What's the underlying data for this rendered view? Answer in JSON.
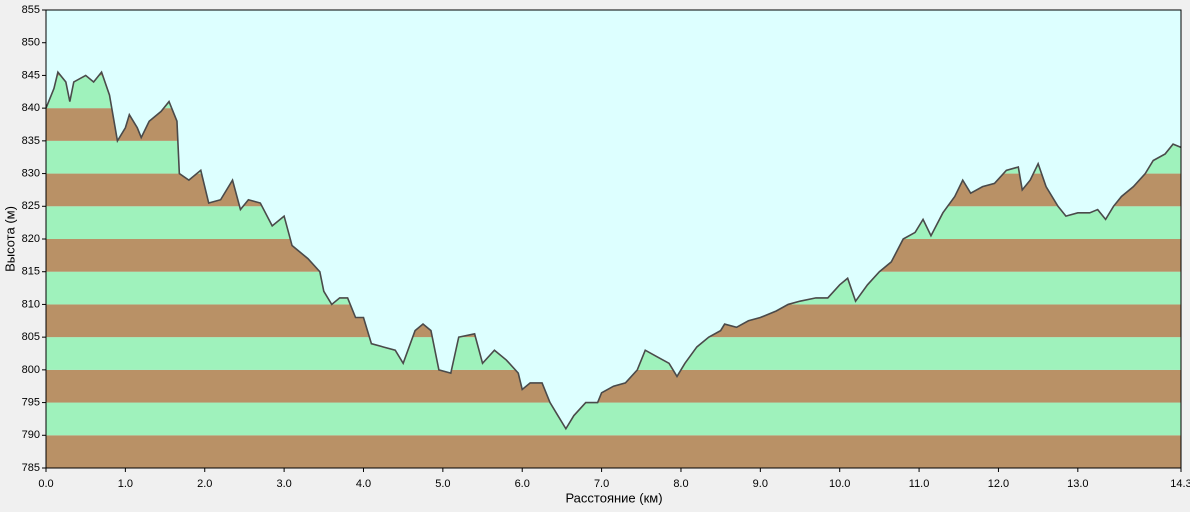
{
  "chart_data": {
    "type": "area",
    "xlabel": "Расстояние  (км)",
    "ylabel": "Высота (м)",
    "x": [
      0.0,
      0.1,
      0.15,
      0.25,
      0.3,
      0.35,
      0.5,
      0.6,
      0.7,
      0.8,
      0.9,
      1.0,
      1.05,
      1.15,
      1.2,
      1.3,
      1.45,
      1.55,
      1.65,
      1.68,
      1.8,
      1.95,
      2.05,
      2.2,
      2.35,
      2.45,
      2.55,
      2.7,
      2.85,
      3.0,
      3.1,
      3.3,
      3.45,
      3.5,
      3.6,
      3.7,
      3.8,
      3.9,
      4.0,
      4.1,
      4.25,
      4.4,
      4.5,
      4.65,
      4.75,
      4.85,
      4.95,
      5.1,
      5.2,
      5.4,
      5.5,
      5.65,
      5.8,
      5.95,
      6.0,
      6.1,
      6.25,
      6.35,
      6.45,
      6.55,
      6.65,
      6.8,
      6.95,
      7.0,
      7.15,
      7.3,
      7.45,
      7.55,
      7.7,
      7.85,
      7.95,
      8.05,
      8.2,
      8.35,
      8.5,
      8.55,
      8.7,
      8.85,
      9.0,
      9.2,
      9.35,
      9.5,
      9.7,
      9.85,
      10.0,
      10.1,
      10.2,
      10.35,
      10.5,
      10.65,
      10.8,
      10.95,
      11.05,
      11.15,
      11.3,
      11.45,
      11.55,
      11.65,
      11.8,
      11.95,
      12.1,
      12.25,
      12.3,
      12.4,
      12.5,
      12.6,
      12.75,
      12.85,
      13.0,
      13.15,
      13.25,
      13.35,
      13.45,
      13.55,
      13.7,
      13.85,
      13.95,
      14.1,
      14.2,
      14.3
    ],
    "values": [
      840,
      843,
      845.5,
      844,
      841,
      844,
      845,
      844,
      845.5,
      842,
      835,
      837,
      839,
      837,
      835.5,
      838,
      839.5,
      841,
      838,
      830,
      829,
      830.5,
      825.5,
      826,
      829,
      824.5,
      826,
      825.5,
      822,
      823.5,
      819,
      817,
      815,
      812,
      810,
      811,
      811,
      808,
      808,
      804,
      803.5,
      803,
      801,
      806,
      807,
      806,
      800,
      799.5,
      805,
      805.5,
      801,
      803,
      801.5,
      799.5,
      797,
      798,
      798,
      795,
      793,
      791,
      793,
      795,
      795,
      796.5,
      797.5,
      798,
      800,
      803,
      802,
      801,
      799,
      801,
      803.5,
      805,
      806,
      807,
      806.5,
      807.5,
      808,
      809,
      810,
      810.5,
      811,
      811,
      813,
      814,
      810.5,
      813,
      815,
      816.5,
      820,
      821,
      823,
      820.5,
      824,
      826.5,
      829,
      827,
      828,
      828.5,
      830.5,
      831,
      827.5,
      829,
      831.5,
      828,
      825,
      823.5,
      824,
      824,
      824.5,
      823,
      825,
      826.5,
      828,
      830,
      832,
      833,
      834.5,
      834
    ],
    "xlim": [
      0,
      14.3
    ],
    "ylim": [
      785,
      855
    ],
    "xticks": [
      {
        "value": 0,
        "label": "0.0"
      },
      {
        "value": 1,
        "label": "1.0"
      },
      {
        "value": 2,
        "label": "2.0"
      },
      {
        "value": 3,
        "label": "3.0"
      },
      {
        "value": 4,
        "label": "4.0"
      },
      {
        "value": 5,
        "label": "5.0"
      },
      {
        "value": 6,
        "label": "6.0"
      },
      {
        "value": 7,
        "label": "7.0"
      },
      {
        "value": 8,
        "label": "8.0"
      },
      {
        "value": 9,
        "label": "9.0"
      },
      {
        "value": 10,
        "label": "10.0"
      },
      {
        "value": 11,
        "label": "11.0"
      },
      {
        "value": 12,
        "label": "12.0"
      },
      {
        "value": 13,
        "label": "13.0"
      },
      {
        "value": 14.3,
        "label": "14.3"
      }
    ],
    "yticks": [
      785,
      790,
      795,
      800,
      805,
      810,
      815,
      820,
      825,
      830,
      835,
      840,
      845,
      850,
      855
    ],
    "line_color": "#4a4a4a",
    "background": "#ddffff",
    "band_colors": [
      "#b99166",
      "#9ff2bc"
    ]
  }
}
